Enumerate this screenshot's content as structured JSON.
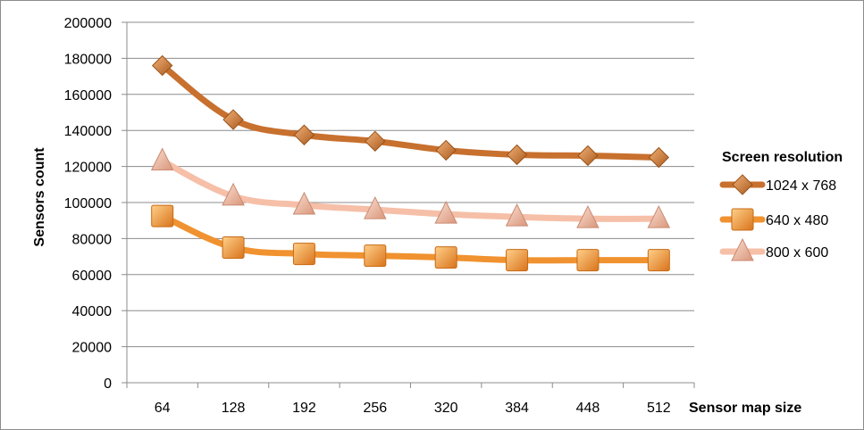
{
  "chart_data": {
    "type": "line",
    "xlabel": "Sensor map size",
    "ylabel": "Sensors count",
    "categories": [
      "64",
      "128",
      "192",
      "256",
      "320",
      "384",
      "448",
      "512"
    ],
    "ylim": [
      0,
      200000
    ],
    "yticks": [
      0,
      20000,
      40000,
      60000,
      80000,
      100000,
      120000,
      140000,
      160000,
      180000,
      200000
    ],
    "grid": true,
    "legend": {
      "title": "Screen resolution",
      "position": "right"
    },
    "series": [
      {
        "name": "1024 x 768",
        "values": [
          176000,
          146000,
          137500,
          134000,
          129000,
          126500,
          126000,
          125000
        ],
        "color": "#c8702e",
        "marker": "diamond"
      },
      {
        "name": "640 x 480",
        "values": [
          92500,
          75000,
          71500,
          70500,
          69500,
          68000,
          68000,
          68000
        ],
        "color": "#f0922f",
        "marker": "square"
      },
      {
        "name": "800 x 600",
        "values": [
          123000,
          103500,
          98500,
          96000,
          93500,
          92000,
          91000,
          91000
        ],
        "color": "#f6bfa8",
        "marker": "triangle"
      }
    ]
  }
}
